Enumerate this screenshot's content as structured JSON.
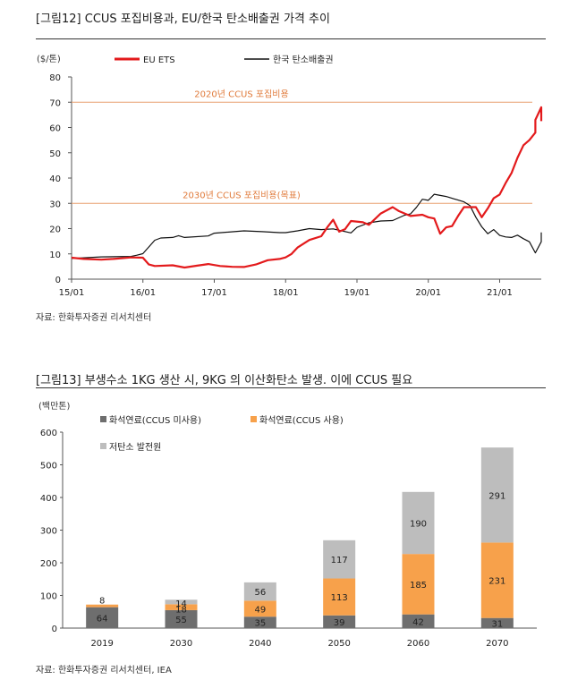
{
  "figure1": {
    "title": "[그림12]   CCUS 포집비용과, EU/한국 탄소배출권 가격 추이",
    "source": "자료: 한화투자증권 리서치센터",
    "chart_data": {
      "type": "line",
      "unit_label": "($/톤)",
      "ylim": [
        0,
        80
      ],
      "yticks": [
        0,
        10,
        20,
        30,
        40,
        50,
        60,
        70,
        80
      ],
      "xlim": [
        "2015-01",
        "2021-08"
      ],
      "xticks": [
        "15/01",
        "16/01",
        "17/01",
        "18/01",
        "19/01",
        "20/01",
        "21/01"
      ],
      "legend_position": "top",
      "reference_lines": [
        {
          "label": "2020년 CCUS 포집비용",
          "value": 70,
          "color": "#e8a070"
        },
        {
          "label": "2030년 CCUS 포집비용(목표)",
          "value": 30,
          "color": "#e8a070"
        }
      ],
      "series": [
        {
          "name": "EU ETS",
          "color": "#e31a1c",
          "points": [
            [
              "2015-01",
              8.5
            ],
            [
              "2015-03",
              8.0
            ],
            [
              "2015-06",
              7.7
            ],
            [
              "2015-08",
              8.0
            ],
            [
              "2015-10",
              8.4
            ],
            [
              "2015-11",
              8.6
            ],
            [
              "2016-01",
              8.5
            ],
            [
              "2016-02",
              5.8
            ],
            [
              "2016-03",
              5.2
            ],
            [
              "2016-06",
              5.5
            ],
            [
              "2016-08",
              4.6
            ],
            [
              "2016-10",
              5.3
            ],
            [
              "2016-12",
              6.0
            ],
            [
              "2017-02",
              5.2
            ],
            [
              "2017-04",
              4.9
            ],
            [
              "2017-06",
              4.8
            ],
            [
              "2017-08",
              5.8
            ],
            [
              "2017-10",
              7.5
            ],
            [
              "2017-12",
              8.0
            ],
            [
              "2018-01",
              8.6
            ],
            [
              "2018-02",
              10.0
            ],
            [
              "2018-03",
              12.5
            ],
            [
              "2018-05",
              15.5
            ],
            [
              "2018-07",
              17.0
            ],
            [
              "2018-08",
              20.5
            ],
            [
              "2018-09",
              23.5
            ],
            [
              "2018-10",
              18.8
            ],
            [
              "2018-11",
              19.8
            ],
            [
              "2018-12",
              23.0
            ],
            [
              "2019-02",
              22.5
            ],
            [
              "2019-03",
              21.5
            ],
            [
              "2019-05",
              26.0
            ],
            [
              "2019-07",
              28.5
            ],
            [
              "2019-08",
              27.0
            ],
            [
              "2019-10",
              25.0
            ],
            [
              "2019-12",
              25.5
            ],
            [
              "2020-01",
              24.5
            ],
            [
              "2020-02",
              24.0
            ],
            [
              "2020-03",
              18.0
            ],
            [
              "2020-04",
              20.5
            ],
            [
              "2020-05",
              21.0
            ],
            [
              "2020-06",
              25.0
            ],
            [
              "2020-07",
              28.5
            ],
            [
              "2020-09",
              28.5
            ],
            [
              "2020-10",
              24.5
            ],
            [
              "2020-11",
              28.0
            ],
            [
              "2020-12",
              32.0
            ],
            [
              "2021-01",
              33.5
            ],
            [
              "2021-02",
              38.0
            ],
            [
              "2021-03",
              42.0
            ],
            [
              "2021-04",
              48.0
            ],
            [
              "2021-05",
              53.0
            ],
            [
              "2021-06",
              55.0
            ],
            [
              "2021-07",
              58.0
            ],
            [
              "2021-07",
              63.0
            ],
            [
              "2021-08",
              68.0
            ],
            [
              "2021-08",
              62.5
            ]
          ]
        },
        {
          "name": "한국 탄소배출권",
          "color": "#111111",
          "points": [
            [
              "2015-01",
              8.2
            ],
            [
              "2015-06",
              8.8
            ],
            [
              "2015-11",
              9.0
            ],
            [
              "2015-12",
              9.5
            ],
            [
              "2016-01",
              10.1
            ],
            [
              "2016-03",
              15.4
            ],
            [
              "2016-04",
              16.3
            ],
            [
              "2016-06",
              16.5
            ],
            [
              "2016-07",
              17.2
            ],
            [
              "2016-08",
              16.5
            ],
            [
              "2016-12",
              17.1
            ],
            [
              "2017-01",
              18.2
            ],
            [
              "2017-06",
              19.1
            ],
            [
              "2017-09",
              18.8
            ],
            [
              "2017-12",
              18.4
            ],
            [
              "2018-01",
              18.4
            ],
            [
              "2018-03",
              19.1
            ],
            [
              "2018-05",
              20.0
            ],
            [
              "2018-07",
              19.6
            ],
            [
              "2018-09",
              19.9
            ],
            [
              "2018-12",
              18.3
            ],
            [
              "2019-01",
              20.5
            ],
            [
              "2019-03",
              22.3
            ],
            [
              "2019-05",
              23.0
            ],
            [
              "2019-07",
              23.2
            ],
            [
              "2019-09",
              25.3
            ],
            [
              "2019-10",
              25.8
            ],
            [
              "2019-11",
              28.4
            ],
            [
              "2019-12",
              31.6
            ],
            [
              "2020-01",
              31.2
            ],
            [
              "2020-02",
              33.6
            ],
            [
              "2020-04",
              32.7
            ],
            [
              "2020-06",
              31.3
            ],
            [
              "2020-07",
              30.6
            ],
            [
              "2020-08",
              29.1
            ],
            [
              "2020-09",
              24.5
            ],
            [
              "2020-10",
              20.7
            ],
            [
              "2020-11",
              18.0
            ],
            [
              "2020-12",
              19.6
            ],
            [
              "2021-01",
              17.3
            ],
            [
              "2021-02",
              16.7
            ],
            [
              "2021-03",
              16.5
            ],
            [
              "2021-04",
              17.4
            ],
            [
              "2021-05",
              16.0
            ],
            [
              "2021-06",
              14.8
            ],
            [
              "2021-07",
              10.4
            ],
            [
              "2021-08",
              14.8
            ],
            [
              "2021-08",
              18.5
            ]
          ]
        }
      ]
    }
  },
  "figure2": {
    "title": "[그림13]   부생수소 1KG 생산 시, 9KG 의 이산화탄소 발생. 이에 CCUS 필요",
    "source": "자료: 한화투자증권 리서치센터, IEA",
    "chart_data": {
      "type": "bar",
      "stacked": true,
      "unit_label": "(백만톤)",
      "ylim": [
        0,
        600
      ],
      "yticks": [
        0,
        100,
        200,
        300,
        400,
        500,
        600
      ],
      "categories": [
        "2019",
        "2030",
        "2040",
        "2050",
        "2060",
        "2070"
      ],
      "legend_position": "top-left",
      "series": [
        {
          "name": "화석연료(CCUS 미사용)",
          "color": "#6e6e6e",
          "values": [
            64,
            55,
            35,
            39,
            42,
            31
          ]
        },
        {
          "name": "화석연료(CCUS 사용)",
          "color": "#f7a14b",
          "values": [
            8,
            18,
            49,
            113,
            185,
            231
          ]
        },
        {
          "name": "저탄소 발전원",
          "color": "#bdbdbd",
          "values": [
            null,
            14,
            56,
            117,
            190,
            291
          ]
        }
      ],
      "data_labels": true
    }
  }
}
